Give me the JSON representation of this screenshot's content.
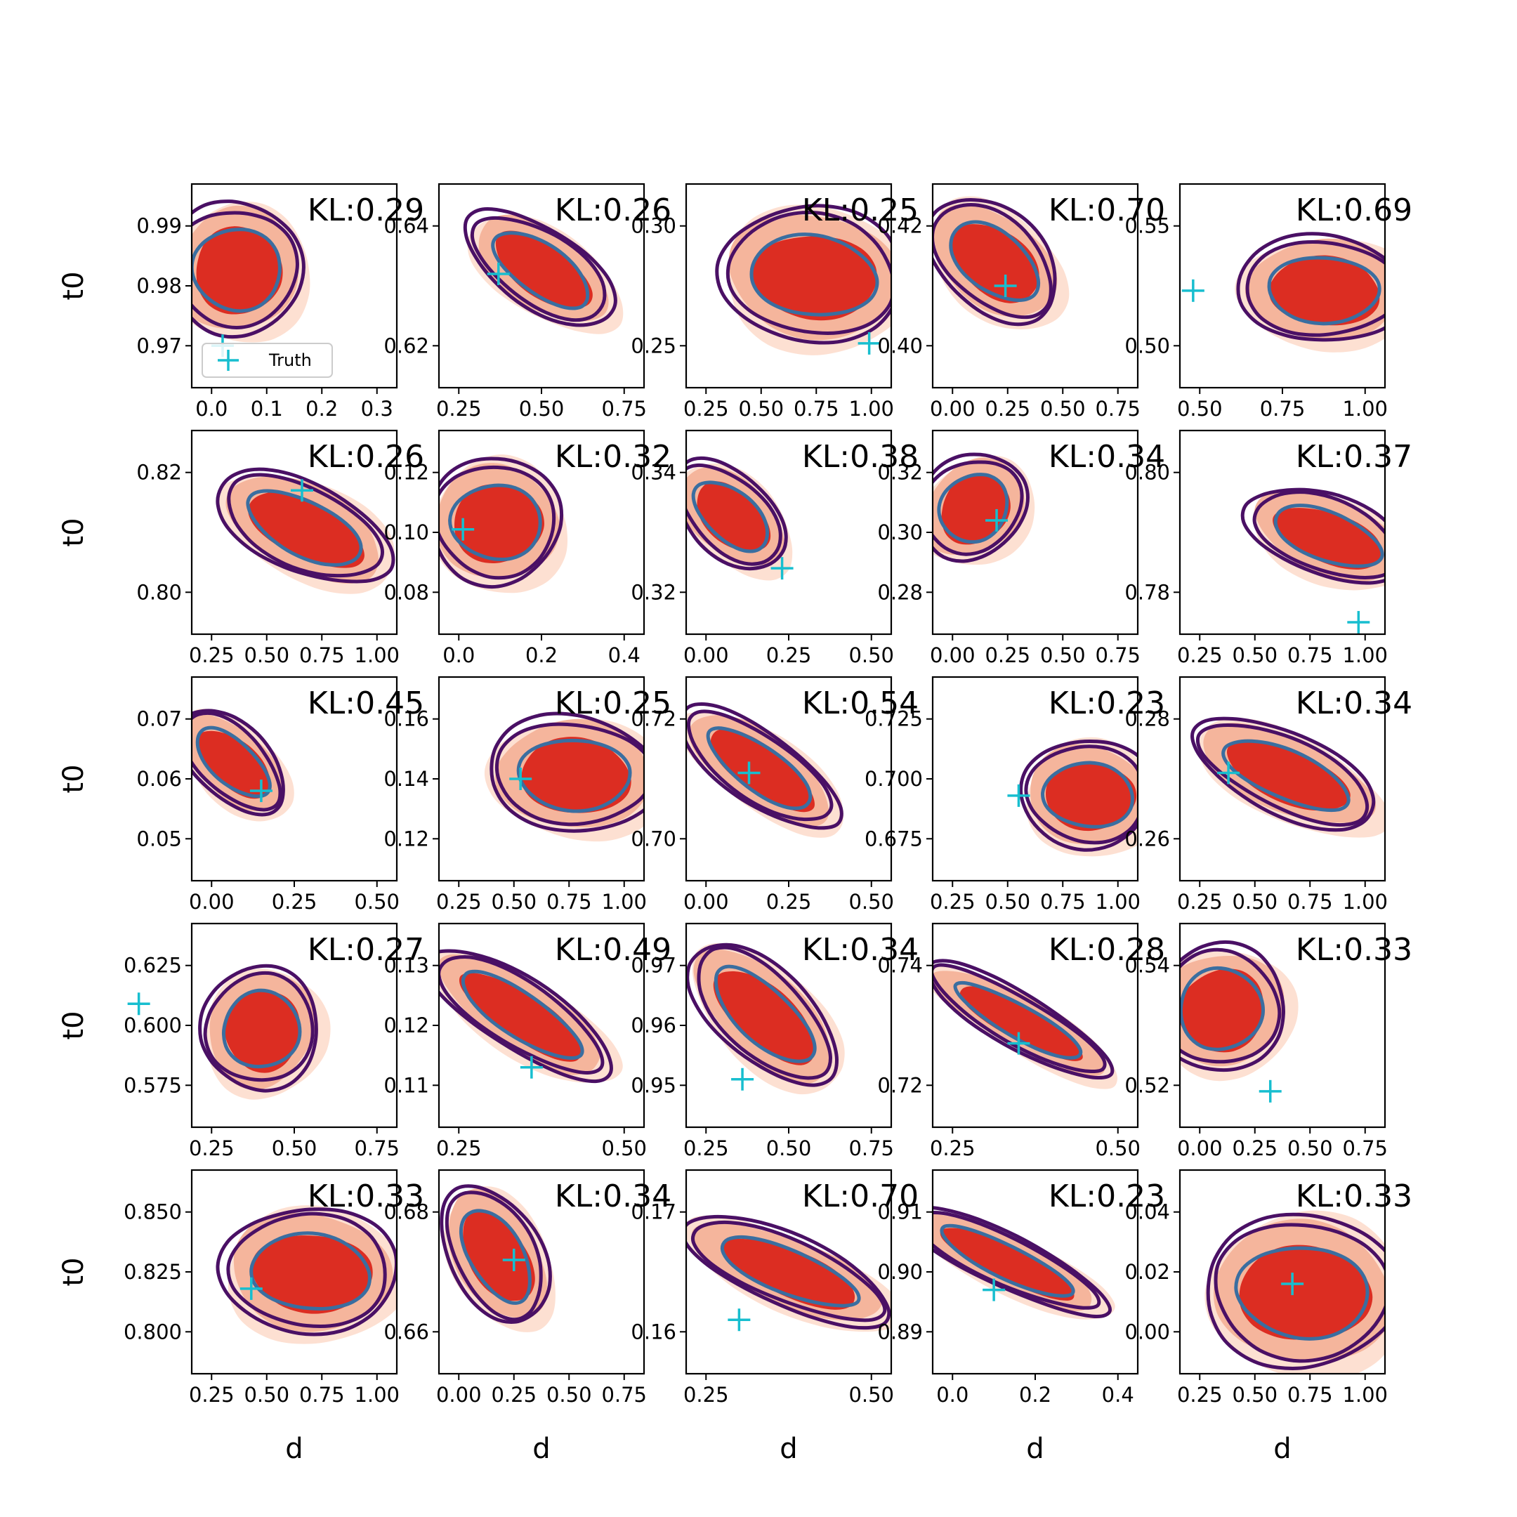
{
  "chart_data": {
    "type": "contour-grid",
    "rows": 5,
    "cols": 5,
    "xlabel": "d",
    "ylabel": "t0",
    "kl_prefix": "KL:",
    "legend": {
      "label": "Truth",
      "placement": "lower-left of first panel"
    },
    "colors": {
      "fill_outer": "#fde0d2",
      "fill_mid": "#f5b59c",
      "fill_core": "#dc2d22",
      "contour_outer": "#4a1065",
      "contour_inner": "#3a6ea0",
      "truth_marker": "#17becf"
    },
    "panels": [
      {
        "kl": "0.29",
        "xticks": [
          "0.0",
          "0.1",
          "0.2",
          "0.3"
        ],
        "yticks": [
          "0.97",
          "0.98",
          "0.99"
        ],
        "truth": {
          "d": 0.02,
          "t0": 0.97
        }
      },
      {
        "kl": "0.26",
        "xticks": [
          "0.25",
          "0.50",
          "0.75"
        ],
        "yticks": [
          "0.62",
          "0.64"
        ],
        "truth": {
          "d": 0.37,
          "t0": 0.632
        }
      },
      {
        "kl": "0.25",
        "xticks": [
          "0.25",
          "0.50",
          "0.75",
          "1.00"
        ],
        "yticks": [
          "0.25",
          "0.30"
        ],
        "truth": {
          "d": 0.99,
          "t0": 0.251
        }
      },
      {
        "kl": "0.70",
        "xticks": [
          "0.00",
          "0.25",
          "0.50",
          "0.75"
        ],
        "yticks": [
          "0.40",
          "0.42"
        ],
        "truth": {
          "d": 0.24,
          "t0": 0.41
        }
      },
      {
        "kl": "0.69",
        "xticks": [
          "0.50",
          "0.75",
          "1.00"
        ],
        "yticks": [
          "0.50",
          "0.55"
        ],
        "truth": {
          "d": 0.48,
          "t0": 0.523
        }
      },
      {
        "kl": "0.26",
        "xticks": [
          "0.25",
          "0.50",
          "0.75",
          "1.00"
        ],
        "yticks": [
          "0.80",
          "0.82"
        ],
        "truth": {
          "d": 0.66,
          "t0": 0.817
        }
      },
      {
        "kl": "0.32",
        "xticks": [
          "0.0",
          "0.2",
          "0.4"
        ],
        "yticks": [
          "0.08",
          "0.10",
          "0.12"
        ],
        "truth": {
          "d": 0.01,
          "t0": 0.101
        }
      },
      {
        "kl": "0.38",
        "xticks": [
          "0.00",
          "0.25",
          "0.50"
        ],
        "yticks": [
          "0.32",
          "0.34"
        ],
        "truth": {
          "d": 0.23,
          "t0": 0.324
        }
      },
      {
        "kl": "0.34",
        "xticks": [
          "0.00",
          "0.25",
          "0.50",
          "0.75"
        ],
        "yticks": [
          "0.28",
          "0.30",
          "0.32"
        ],
        "truth": {
          "d": 0.2,
          "t0": 0.304
        }
      },
      {
        "kl": "0.37",
        "xticks": [
          "0.25",
          "0.50",
          "0.75",
          "1.00"
        ],
        "yticks": [
          "0.78",
          "0.80"
        ],
        "truth": {
          "d": 0.97,
          "t0": 0.775
        }
      },
      {
        "kl": "0.45",
        "xticks": [
          "0.00",
          "0.25",
          "0.50"
        ],
        "yticks": [
          "0.05",
          "0.06",
          "0.07"
        ],
        "truth": {
          "d": 0.15,
          "t0": 0.058
        }
      },
      {
        "kl": "0.25",
        "xticks": [
          "0.25",
          "0.50",
          "0.75",
          "1.00"
        ],
        "yticks": [
          "0.12",
          "0.14",
          "0.16"
        ],
        "truth": {
          "d": 0.53,
          "t0": 0.14
        }
      },
      {
        "kl": "0.54",
        "xticks": [
          "0.00",
          "0.25",
          "0.50"
        ],
        "yticks": [
          "0.70",
          "0.72"
        ],
        "truth": {
          "d": 0.13,
          "t0": 0.711
        }
      },
      {
        "kl": "0.23",
        "xticks": [
          "0.25",
          "0.50",
          "0.75",
          "1.00"
        ],
        "yticks": [
          "0.675",
          "0.700",
          "0.725"
        ],
        "truth": {
          "d": 0.55,
          "t0": 0.693
        }
      },
      {
        "kl": "0.34",
        "xticks": [
          "0.25",
          "0.50",
          "0.75",
          "1.00"
        ],
        "yticks": [
          "0.26",
          "0.28"
        ],
        "truth": {
          "d": 0.38,
          "t0": 0.271
        }
      },
      {
        "kl": "0.27",
        "xticks": [
          "0.25",
          "0.50",
          "0.75"
        ],
        "yticks": [
          "0.575",
          "0.600",
          "0.625"
        ],
        "truth": {
          "d": 0.03,
          "t0": 0.609
        }
      },
      {
        "kl": "0.49",
        "xticks": [
          "0.25",
          "0.50"
        ],
        "yticks": [
          "0.11",
          "0.12",
          "0.13"
        ],
        "truth": {
          "d": 0.36,
          "t0": 0.113
        }
      },
      {
        "kl": "0.34",
        "xticks": [
          "0.25",
          "0.50",
          "0.75"
        ],
        "yticks": [
          "0.95",
          "0.96",
          "0.97"
        ],
        "truth": {
          "d": 0.36,
          "t0": 0.951
        }
      },
      {
        "kl": "0.28",
        "xticks": [
          "0.25",
          "0.50"
        ],
        "yticks": [
          "0.72",
          "0.74"
        ],
        "truth": {
          "d": 0.35,
          "t0": 0.727
        }
      },
      {
        "kl": "0.33",
        "xticks": [
          "0.00",
          "0.25",
          "0.50",
          "0.75"
        ],
        "yticks": [
          "0.52",
          "0.54"
        ],
        "truth": {
          "d": 0.32,
          "t0": 0.519
        }
      },
      {
        "kl": "0.33",
        "xticks": [
          "0.25",
          "0.50",
          "0.75",
          "1.00"
        ],
        "yticks": [
          "0.800",
          "0.825",
          "0.850"
        ],
        "truth": {
          "d": 0.43,
          "t0": 0.818
        }
      },
      {
        "kl": "0.34",
        "xticks": [
          "0.00",
          "0.25",
          "0.50",
          "0.75"
        ],
        "yticks": [
          "0.66",
          "0.68"
        ],
        "truth": {
          "d": 0.25,
          "t0": 0.672
        }
      },
      {
        "kl": "0.70",
        "xticks": [
          "0.25",
          "0.50"
        ],
        "yticks": [
          "0.16",
          "0.17"
        ],
        "truth": {
          "d": 0.3,
          "t0": 0.161
        }
      },
      {
        "kl": "0.23",
        "xticks": [
          "0.0",
          "0.2",
          "0.4"
        ],
        "yticks": [
          "0.89",
          "0.90",
          "0.91"
        ],
        "truth": {
          "d": 0.1,
          "t0": 0.897
        }
      },
      {
        "kl": "0.33",
        "xticks": [
          "0.25",
          "0.50",
          "0.75",
          "1.00"
        ],
        "yticks": [
          "0.00",
          "0.02",
          "0.04"
        ],
        "truth": {
          "d": 0.67,
          "t0": 0.016
        }
      }
    ]
  }
}
